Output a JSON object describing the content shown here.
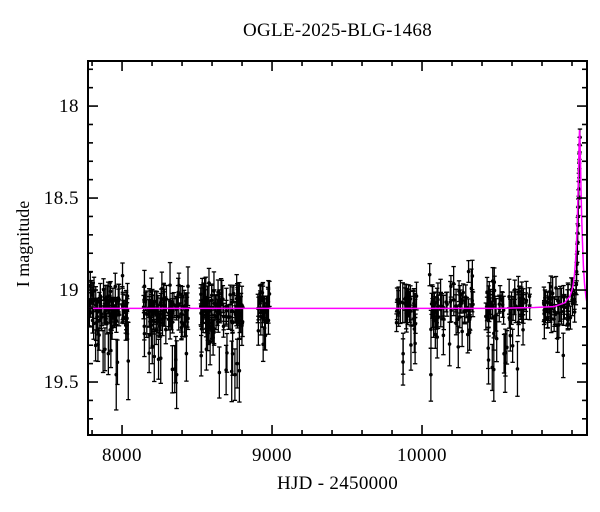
{
  "page": {
    "background": "#ffffff"
  },
  "chart_data": {
    "type": "scatter",
    "title": "OGLE-2025-BLG-1468",
    "xlabel": "HJD - 2450000",
    "ylabel": "I magnitude",
    "xlim": [
      7773,
      11100
    ],
    "ylim": [
      17.755,
      19.788
    ],
    "y_axis_inverted_magnitudes": true,
    "x_major_ticks": [
      8000,
      9000,
      10000
    ],
    "x_minor_step": 200,
    "y_major_ticks": [
      18,
      18.5,
      19,
      19.5
    ],
    "y_minor_step": 0.1,
    "grid": false,
    "legend": false,
    "colors": {
      "points": "#000000",
      "model": "#ff00ff",
      "frame": "#000000",
      "background": "#ffffff"
    },
    "baseline_mag": 19.1,
    "peak": {
      "hjd": 11050,
      "mag": 18.13
    },
    "seasons": [
      {
        "name": "season-1",
        "hjd_start": 7780,
        "hjd_end": 8045,
        "n": 88,
        "mag_mean": 19.1,
        "mag_sigma": 0.055
      },
      {
        "name": "season-2",
        "hjd_start": 8140,
        "hjd_end": 8440,
        "n": 92,
        "mag_mean": 19.1,
        "mag_sigma": 0.055
      },
      {
        "name": "season-3",
        "hjd_start": 8520,
        "hjd_end": 8805,
        "n": 92,
        "mag_mean": 19.1,
        "mag_sigma": 0.055
      },
      {
        "name": "season-4",
        "hjd_start": 8905,
        "hjd_end": 8985,
        "n": 28,
        "mag_mean": 19.08,
        "mag_sigma": 0.05
      },
      {
        "name": "season-5",
        "hjd_start": 9830,
        "hjd_end": 9970,
        "n": 34,
        "mag_mean": 19.1,
        "mag_sigma": 0.06
      },
      {
        "name": "season-6",
        "hjd_start": 10050,
        "hjd_end": 10340,
        "n": 62,
        "mag_mean": 19.1,
        "mag_sigma": 0.055
      },
      {
        "name": "season-7",
        "hjd_start": 10420,
        "hjd_end": 10720,
        "n": 62,
        "mag_mean": 19.1,
        "mag_sigma": 0.055
      },
      {
        "name": "season-8",
        "hjd_start": 10800,
        "hjd_end": 11020,
        "n": 50,
        "mag_mean": 19.09,
        "mag_sigma": 0.055
      }
    ],
    "scatter_noise": {
      "seed": 4242,
      "faint_outlier_prob": 0.12,
      "faint_outlier_extra_max": 0.34,
      "bright_outlier_prob": 0.04,
      "err_base": 0.045,
      "err_spread": 0.028,
      "mag_min": 18.88,
      "mag_max": 19.46,
      "err_min": 0.032,
      "err_max": 0.21
    },
    "rise_points": [
      [
        11026,
        19.02,
        0.06
      ],
      [
        11029,
        18.97,
        0.055
      ],
      [
        11031,
        18.9,
        0.05
      ],
      [
        11033,
        18.86,
        0.055
      ],
      [
        11035,
        18.8,
        0.05
      ],
      [
        11036,
        18.74,
        0.05
      ],
      [
        11038,
        18.69,
        0.05
      ],
      [
        11039,
        18.65,
        0.045
      ],
      [
        11041,
        18.6,
        0.05
      ],
      [
        11042,
        18.55,
        0.045
      ],
      [
        11044,
        18.5,
        0.045
      ],
      [
        11045,
        18.45,
        0.04
      ],
      [
        11046,
        18.41,
        0.045
      ],
      [
        11048,
        18.35,
        0.04
      ],
      [
        11049,
        18.3,
        0.04
      ],
      [
        11050,
        18.25,
        0.04
      ],
      [
        11051,
        18.21,
        0.04
      ],
      [
        11053,
        18.17,
        0.045
      ]
    ],
    "model_curve": [
      [
        7773,
        19.1
      ],
      [
        10500,
        19.1
      ],
      [
        10750,
        19.095
      ],
      [
        10880,
        19.09
      ],
      [
        10950,
        19.07
      ],
      [
        10985,
        19.035
      ],
      [
        11000,
        19.0
      ],
      [
        11008,
        18.97
      ],
      [
        11016,
        18.92
      ],
      [
        11022,
        18.86
      ],
      [
        11028,
        18.78
      ],
      [
        11033,
        18.67
      ],
      [
        11037,
        18.56
      ],
      [
        11041,
        18.43
      ],
      [
        11044,
        18.32
      ],
      [
        11047,
        18.21
      ],
      [
        11049,
        18.15
      ],
      [
        11050,
        18.13
      ],
      [
        11052,
        18.155
      ],
      [
        11054,
        18.22
      ],
      [
        11057,
        18.33
      ],
      [
        11060,
        18.45
      ],
      [
        11064,
        18.59
      ],
      [
        11069,
        18.73
      ],
      [
        11076,
        18.87
      ],
      [
        11084,
        18.97
      ],
      [
        11093,
        19.04
      ],
      [
        11100,
        19.07
      ]
    ]
  }
}
